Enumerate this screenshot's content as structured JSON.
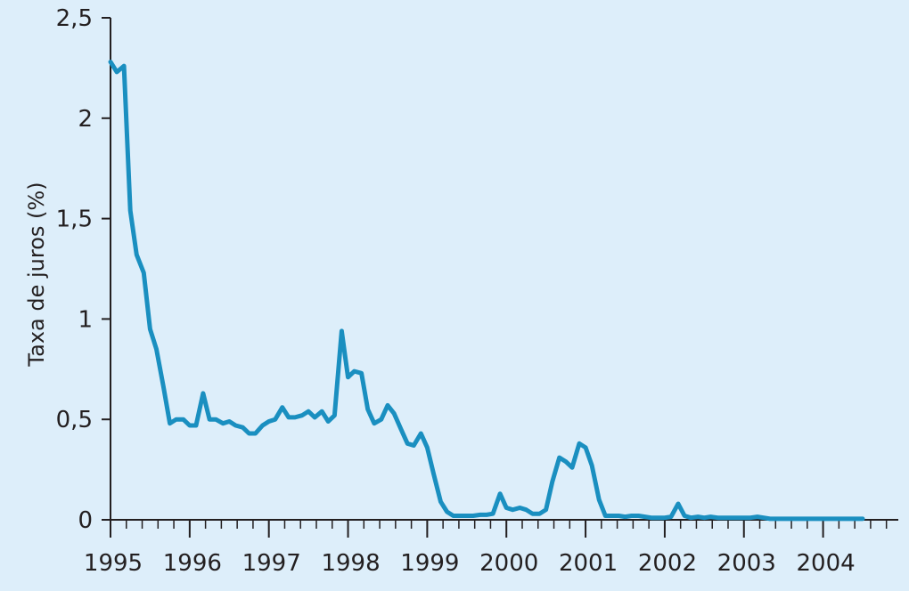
{
  "chart_data": {
    "type": "line",
    "ylabel": "Taxa de juros (%)",
    "xlabel": "",
    "ylim": [
      0,
      2.5
    ],
    "xlim": [
      1995,
      2004.95
    ],
    "grid": false,
    "line_color": "#1a8fc0",
    "axis_color": "#231f20",
    "background": "#ddeefa",
    "y_ticks": [
      {
        "value": 0,
        "label": "0"
      },
      {
        "value": 0.5,
        "label": "0,5"
      },
      {
        "value": 1,
        "label": "1"
      },
      {
        "value": 1.5,
        "label": "1,5"
      },
      {
        "value": 2,
        "label": "2"
      },
      {
        "value": 2.5,
        "label": "2,5"
      }
    ],
    "x_ticks": [
      {
        "value": 1995,
        "label": "1995"
      },
      {
        "value": 1996,
        "label": "1996"
      },
      {
        "value": 1997,
        "label": "1997"
      },
      {
        "value": 1998,
        "label": "1998"
      },
      {
        "value": 1999,
        "label": "1999"
      },
      {
        "value": 2000,
        "label": "2000"
      },
      {
        "value": 2001,
        "label": "2001"
      },
      {
        "value": 2002,
        "label": "2002"
      },
      {
        "value": 2003,
        "label": "2003"
      },
      {
        "value": 2004,
        "label": "2004"
      }
    ],
    "series": [
      {
        "x": [
          1995.0,
          1995.08,
          1995.17,
          1995.25,
          1995.33,
          1995.42,
          1995.5,
          1995.58,
          1995.67,
          1995.75,
          1995.83,
          1995.92,
          1996.0,
          1996.08,
          1996.17,
          1996.25,
          1996.33,
          1996.42,
          1996.5,
          1996.58,
          1996.67,
          1996.75,
          1996.83,
          1996.92,
          1997.0,
          1997.08,
          1997.17,
          1997.25,
          1997.33,
          1997.42,
          1997.5,
          1997.58,
          1997.67,
          1997.75,
          1997.83,
          1997.92,
          1998.0,
          1998.08,
          1998.17,
          1998.25,
          1998.33,
          1998.42,
          1998.5,
          1998.58,
          1998.67,
          1998.75,
          1998.83,
          1998.92,
          1999.0,
          1999.08,
          1999.17,
          1999.25,
          1999.33,
          1999.42,
          1999.5,
          1999.58,
          1999.67,
          1999.75,
          1999.83,
          1999.92,
          2000.0,
          2000.08,
          2000.17,
          2000.25,
          2000.33,
          2000.42,
          2000.5,
          2000.58,
          2000.67,
          2000.75,
          2000.83,
          2000.92,
          2001.0,
          2001.08,
          2001.17,
          2001.25,
          2001.33,
          2001.42,
          2001.5,
          2001.58,
          2001.67,
          2001.75,
          2001.83,
          2001.92,
          2002.0,
          2002.08,
          2002.17,
          2002.25,
          2002.33,
          2002.42,
          2002.5,
          2002.58,
          2002.67,
          2002.75,
          2002.83,
          2002.92,
          2003.0,
          2003.08,
          2003.17,
          2003.25,
          2003.33,
          2003.42,
          2003.5,
          2003.58,
          2003.67,
          2003.75,
          2003.83,
          2003.92,
          2004.0,
          2004.08,
          2004.17,
          2004.25,
          2004.33,
          2004.42,
          2004.5
        ],
        "y": [
          2.28,
          2.23,
          2.26,
          1.54,
          1.32,
          1.23,
          0.95,
          0.85,
          0.66,
          0.48,
          0.5,
          0.5,
          0.47,
          0.47,
          0.63,
          0.5,
          0.5,
          0.48,
          0.49,
          0.47,
          0.46,
          0.43,
          0.43,
          0.47,
          0.49,
          0.5,
          0.56,
          0.51,
          0.51,
          0.52,
          0.54,
          0.51,
          0.54,
          0.49,
          0.52,
          0.94,
          0.71,
          0.74,
          0.73,
          0.55,
          0.48,
          0.5,
          0.57,
          0.53,
          0.45,
          0.38,
          0.37,
          0.43,
          0.36,
          0.23,
          0.09,
          0.04,
          0.02,
          0.02,
          0.02,
          0.02,
          0.025,
          0.025,
          0.03,
          0.13,
          0.06,
          0.05,
          0.06,
          0.05,
          0.03,
          0.03,
          0.05,
          0.19,
          0.31,
          0.29,
          0.26,
          0.38,
          0.36,
          0.27,
          0.1,
          0.02,
          0.02,
          0.02,
          0.015,
          0.02,
          0.02,
          0.015,
          0.01,
          0.01,
          0.01,
          0.015,
          0.08,
          0.02,
          0.01,
          0.015,
          0.01,
          0.015,
          0.01,
          0.01,
          0.01,
          0.01,
          0.01,
          0.01,
          0.015,
          0.01,
          0.005,
          0.005,
          0.005,
          0.005,
          0.005,
          0.005,
          0.005,
          0.005,
          0.005,
          0.005,
          0.005,
          0.005,
          0.005,
          0.005,
          0.005
        ]
      }
    ]
  }
}
